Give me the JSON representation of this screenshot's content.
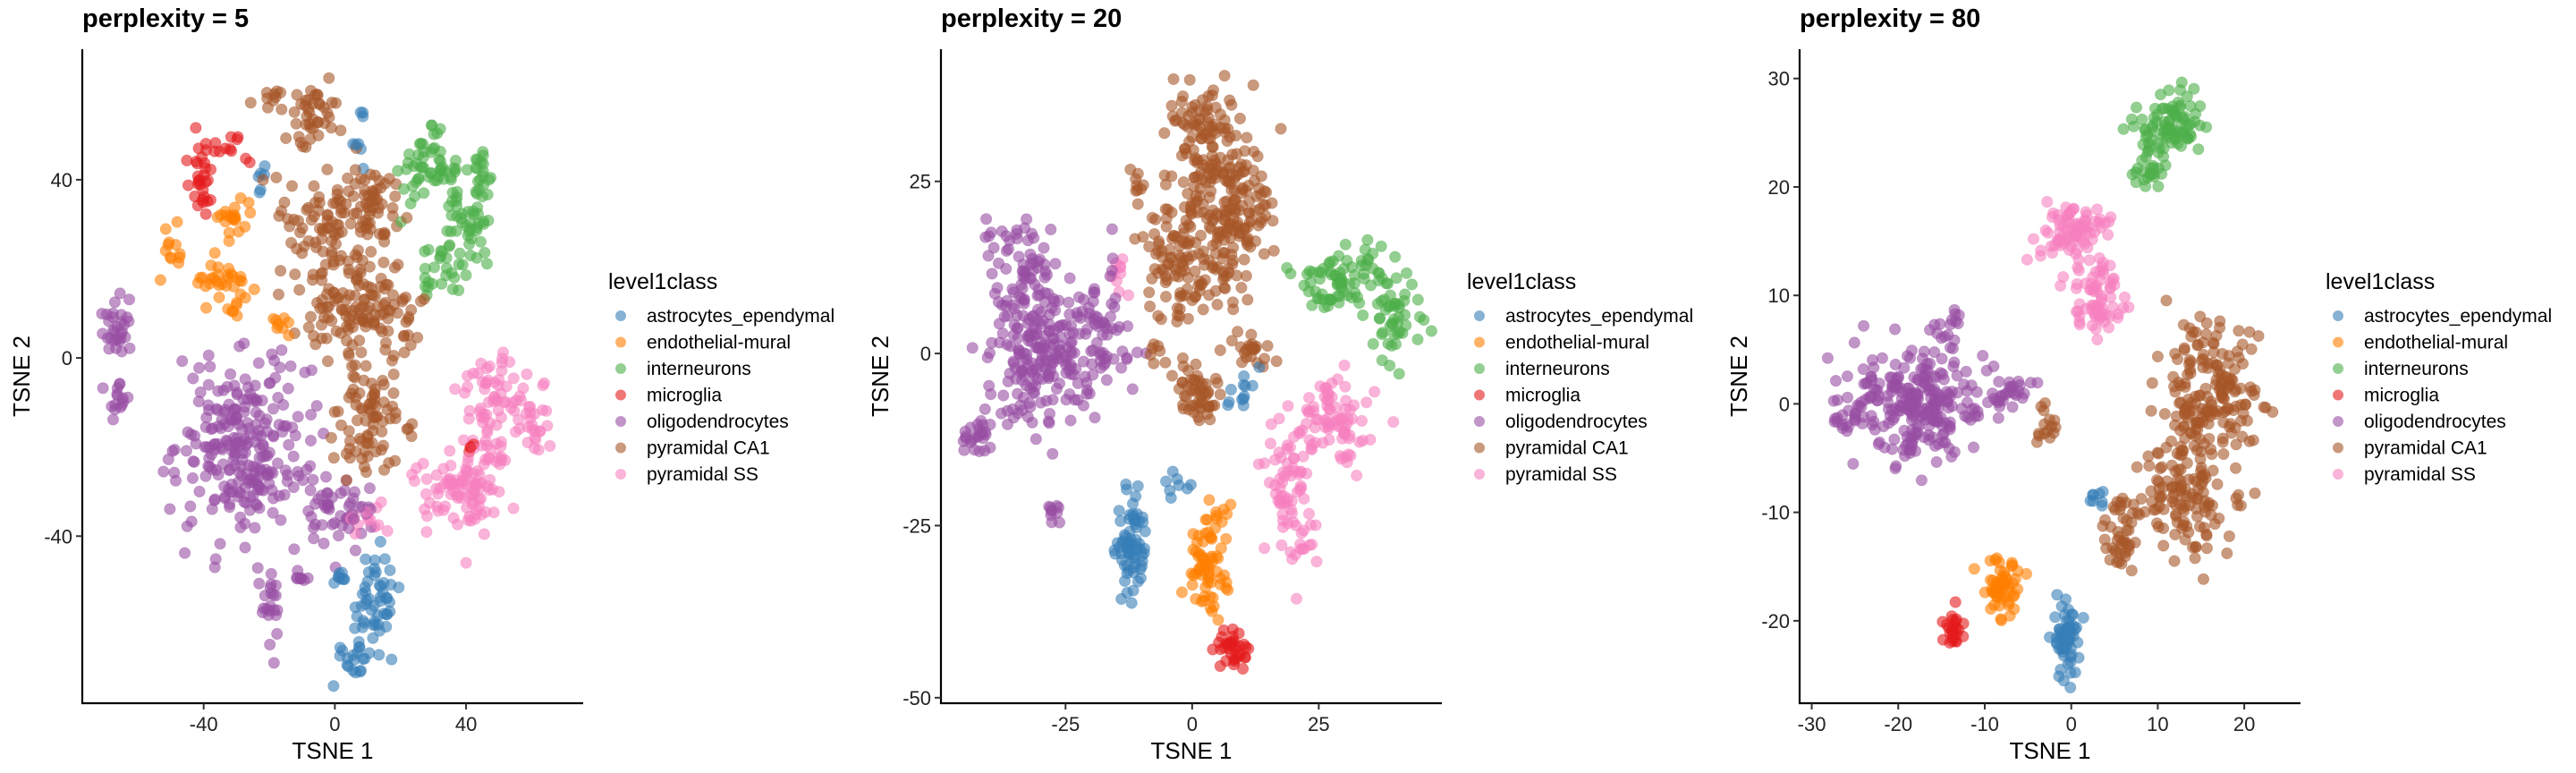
{
  "chart_data": [
    {
      "type": "scatter",
      "title": "perplexity = 5",
      "xlabel": "TSNE 1",
      "ylabel": "TSNE 2",
      "xlim": [
        -77,
        75.7
      ],
      "ylim": [
        -77.5,
        69.3
      ],
      "xticks": [
        -40,
        0,
        40
      ],
      "yticks": [
        -40,
        0,
        40
      ],
      "grid": false,
      "legend_title": "level1class",
      "legend_placement": "right",
      "point_alpha": 0.6,
      "series": [
        {
          "name": "astrocytes_ependymal",
          "clusters": [
            [
              12,
              -55,
              5,
              7,
              50
            ],
            [
              6,
              -67,
              4,
              3,
              20
            ],
            [
              2,
              -49,
              3,
              1,
              8
            ],
            [
              8,
              51,
              1.5,
              4,
              8
            ],
            [
              -23,
              41,
              1.5,
              2,
              6
            ]
          ]
        },
        {
          "name": "endothelial-mural",
          "clusters": [
            [
              -30,
              31,
              3,
              3,
              20
            ],
            [
              -49,
              24,
              2,
              4,
              12
            ],
            [
              -34,
              17,
              6,
              3,
              35
            ],
            [
              -18,
              8,
              3,
              2,
              8
            ]
          ]
        },
        {
          "name": "interneurons",
          "clusters": [
            [
              28,
              42,
              5,
              5,
              50
            ],
            [
              40,
              30,
              6,
              7,
              50
            ],
            [
              33,
              20,
              4,
              4,
              25
            ],
            [
              45,
              42,
              3,
              3,
              15
            ]
          ]
        },
        {
          "name": "microglia",
          "clusters": [
            [
              -40,
              42,
              4,
              6,
              30
            ],
            [
              -32,
              47,
              4,
              2,
              10
            ],
            [
              42,
              -20,
              1.5,
              1,
              4
            ]
          ]
        },
        {
          "name": "oligodendrocytes",
          "clusters": [
            [
              -28,
              -20,
              12,
              13,
              250
            ],
            [
              0,
              -35,
              8,
              5,
              50
            ],
            [
              -66,
              8,
              3,
              5,
              30
            ],
            [
              -66,
              -9,
              2,
              3,
              15
            ],
            [
              -19,
              -55,
              2,
              5,
              20
            ],
            [
              -10,
              -49,
              1.5,
              3,
              8
            ]
          ]
        },
        {
          "name": "pyramidal CA1",
          "clusters": [
            [
              -6,
              55,
              5,
              5,
              40
            ],
            [
              -18,
              58,
              3,
              2,
              10
            ],
            [
              2,
              30,
              10,
              8,
              120
            ],
            [
              9,
              10,
              12,
              6,
              120
            ],
            [
              12,
              -12,
              7,
              6,
              60
            ],
            [
              8,
              -22,
              5,
              3,
              20
            ],
            [
              12,
              36,
              5,
              4,
              20
            ]
          ]
        },
        {
          "name": "pyramidal SS",
          "clusters": [
            [
              50,
              -10,
              8,
              8,
              70
            ],
            [
              38,
              -28,
              9,
              7,
              100
            ],
            [
              62,
              -13,
              3,
              5,
              20
            ],
            [
              10,
              -36,
              4,
              3,
              15
            ]
          ]
        }
      ]
    },
    {
      "type": "scatter",
      "title": "perplexity = 20",
      "xlabel": "TSNE 1",
      "ylabel": "TSNE 2",
      "xlim": [
        -49.6,
        49.3
      ],
      "ylim": [
        -50.8,
        44.2
      ],
      "xticks": [
        -25,
        0,
        25
      ],
      "yticks": [
        -50,
        -25,
        0,
        25
      ],
      "grid": false,
      "legend_title": "level1class",
      "legend_placement": "right",
      "point_alpha": 0.6,
      "series": [
        {
          "name": "astrocytes_ependymal",
          "clusters": [
            [
              -12,
              -28,
              1.8,
              5,
              70
            ],
            [
              -2,
              -19,
              1.5,
              1,
              8
            ],
            [
              10,
              -6,
              2,
              2,
              12
            ]
          ]
        },
        {
          "name": "endothelial-mural",
          "clusters": [
            [
              3,
              -31,
              2.5,
              5,
              60
            ],
            [
              6,
              -24,
              2,
              1.5,
              10
            ]
          ]
        },
        {
          "name": "interneurons",
          "clusters": [
            [
              28,
              10,
              5,
              2.5,
              60
            ],
            [
              40,
              6,
              3,
              4,
              50
            ],
            [
              35,
              14,
              2,
              2,
              15
            ]
          ]
        },
        {
          "name": "microglia",
          "clusters": [
            [
              8,
              -43,
              2.5,
              1.5,
              35
            ]
          ]
        },
        {
          "name": "oligodendrocytes",
          "clusters": [
            [
              -30,
              0,
              6,
              7,
              200
            ],
            [
              -33,
              13,
              4,
              5,
              60
            ],
            [
              -18,
              4,
              4,
              6,
              60
            ],
            [
              -42,
              -12,
              2.5,
              1.5,
              25
            ],
            [
              -28,
              -23,
              1,
              1,
              10
            ]
          ]
        },
        {
          "name": "pyramidal CA1",
          "clusters": [
            [
              3,
              30,
              5,
              6,
              120
            ],
            [
              9,
              22,
              5,
              5,
              100
            ],
            [
              -3,
              14,
              4,
              6,
              80
            ],
            [
              4,
              12,
              5,
              5,
              60
            ],
            [
              1,
              -6,
              3,
              3,
              50
            ],
            [
              12,
              0,
              2.5,
              1.5,
              20
            ],
            [
              -11,
              23,
              1,
              3,
              8
            ],
            [
              -7,
              1,
              1,
              2,
              8
            ]
          ]
        },
        {
          "name": "pyramidal SS",
          "clusters": [
            [
              27,
              -10,
              5,
              4,
              80
            ],
            [
              19,
              -19,
              3,
              6,
              60
            ],
            [
              21,
              -27,
              1.5,
              3,
              15
            ],
            [
              -14,
              12,
              1,
              2,
              10
            ]
          ]
        }
      ]
    },
    {
      "type": "scatter",
      "title": "perplexity = 80",
      "xlabel": "TSNE 1",
      "ylabel": "TSNE 2",
      "xlim": [
        -31.4,
        26.5
      ],
      "ylim": [
        -27.6,
        32.7
      ],
      "xticks": [
        -30,
        -20,
        -10,
        0,
        10,
        20
      ],
      "yticks": [
        -20,
        -10,
        0,
        10,
        20,
        30
      ],
      "grid": false,
      "legend_title": "level1class",
      "legend_placement": "right",
      "point_alpha": 0.6,
      "series": [
        {
          "name": "astrocytes_ependymal",
          "clusters": [
            [
              -0.5,
              -22,
              1,
              1.8,
              60
            ],
            [
              3,
              -8.5,
              0.6,
              1,
              8
            ]
          ]
        },
        {
          "name": "endothelial-mural",
          "clusters": [
            [
              -8,
              -17,
              1.5,
              1.8,
              60
            ]
          ]
        },
        {
          "name": "interneurons",
          "clusters": [
            [
              12,
              26,
              2.5,
              2,
              80
            ],
            [
              9,
              22,
              1.5,
              2,
              30
            ]
          ]
        },
        {
          "name": "microglia",
          "clusters": [
            [
              -13.5,
              -21,
              0.8,
              1,
              25
            ]
          ]
        },
        {
          "name": "oligodendrocytes",
          "clusters": [
            [
              -18,
              0,
              4.5,
              3,
              250
            ],
            [
              -26,
              -1,
              1.5,
              1,
              20
            ],
            [
              -7,
              1,
              2,
              1.5,
              30
            ],
            [
              -15,
              7,
              2,
              1,
              15
            ]
          ]
        },
        {
          "name": "pyramidal CA1",
          "clusters": [
            [
              16,
              1,
              3.5,
              4,
              180
            ],
            [
              13,
              -9,
              4,
              3,
              120
            ],
            [
              6,
              -12,
              1.5,
              2,
              40
            ],
            [
              -3,
              -2,
              1,
              1.5,
              15
            ]
          ]
        },
        {
          "name": "pyramidal SS",
          "clusters": [
            [
              0,
              16,
              2.5,
              1.5,
              80
            ],
            [
              3,
              10,
              2,
              2,
              70
            ]
          ]
        }
      ]
    }
  ],
  "colors": {
    "astrocytes_ependymal": "#377EB8",
    "endothelial-mural": "#FF7F00",
    "interneurons": "#4DAF4A",
    "microglia": "#E41A1C",
    "oligodendrocytes": "#984EA3",
    "pyramidal CA1": "#A65628",
    "pyramidal SS": "#F781BF"
  }
}
